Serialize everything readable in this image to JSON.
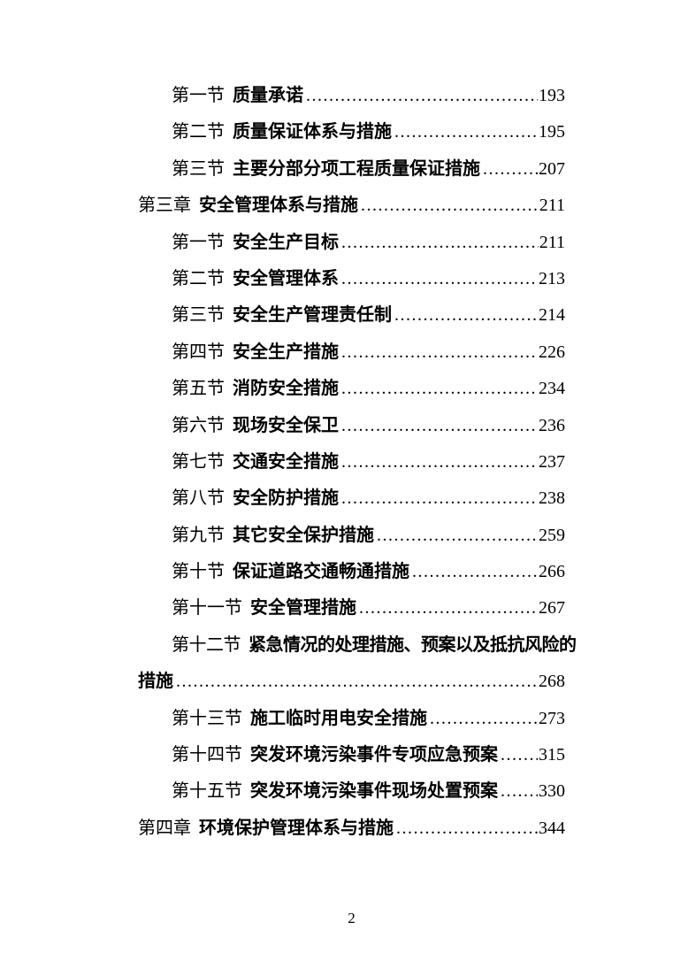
{
  "page": {
    "footer_page_number": "2"
  },
  "toc": {
    "entries": [
      {
        "level": "section",
        "prefix": "第一节",
        "title": "质量承诺",
        "page": "193"
      },
      {
        "level": "section",
        "prefix": "第二节",
        "title": "质量保证体系与措施",
        "page": "195"
      },
      {
        "level": "section",
        "prefix": "第三节",
        "title": "主要分部分项工程质量保证措施",
        "page": "207"
      },
      {
        "level": "chapter",
        "prefix": "第三章",
        "title": "安全管理体系与措施",
        "page": "211"
      },
      {
        "level": "section",
        "prefix": "第一节",
        "title": "安全生产目标",
        "page": "211"
      },
      {
        "level": "section",
        "prefix": "第二节",
        "title": "安全管理体系",
        "page": "213"
      },
      {
        "level": "section",
        "prefix": "第三节",
        "title": "安全生产管理责任制",
        "page": "214"
      },
      {
        "level": "section",
        "prefix": "第四节",
        "title": "安全生产措施",
        "page": "226"
      },
      {
        "level": "section",
        "prefix": "第五节",
        "title": "消防安全措施",
        "page": "234"
      },
      {
        "level": "section",
        "prefix": "第六节",
        "title": "现场安全保卫",
        "page": "236"
      },
      {
        "level": "section",
        "prefix": "第七节",
        "title": "交通安全措施",
        "page": "237"
      },
      {
        "level": "section",
        "prefix": "第八节",
        "title": "安全防护措施",
        "page": "238"
      },
      {
        "level": "section",
        "prefix": "第九节",
        "title": "其它安全保护措施",
        "page": "259"
      },
      {
        "level": "section",
        "prefix": "第十节",
        "title": "保证道路交通畅通措施",
        "page": "266"
      },
      {
        "level": "section",
        "prefix": "第十一节",
        "title": "安全管理措施",
        "page": "267"
      },
      {
        "level": "section",
        "prefix": "第十二节",
        "title": "紧急情况的处理措施、预案以及抵抗风险的",
        "page": ""
      },
      {
        "level": "continuation",
        "prefix": "",
        "title": "措施",
        "page": "268"
      },
      {
        "level": "section",
        "prefix": "第十三节",
        "title": "施工临时用电安全措施",
        "page": "273"
      },
      {
        "level": "section",
        "prefix": "第十四节",
        "title": "突发环境污染事件专项应急预案",
        "page": "315"
      },
      {
        "level": "section",
        "prefix": "第十五节",
        "title": "突发环境污染事件现场处置预案",
        "page": "330"
      },
      {
        "level": "chapter",
        "prefix": "第四章",
        "title": "环境保护管理体系与措施",
        "page": "344"
      }
    ]
  }
}
